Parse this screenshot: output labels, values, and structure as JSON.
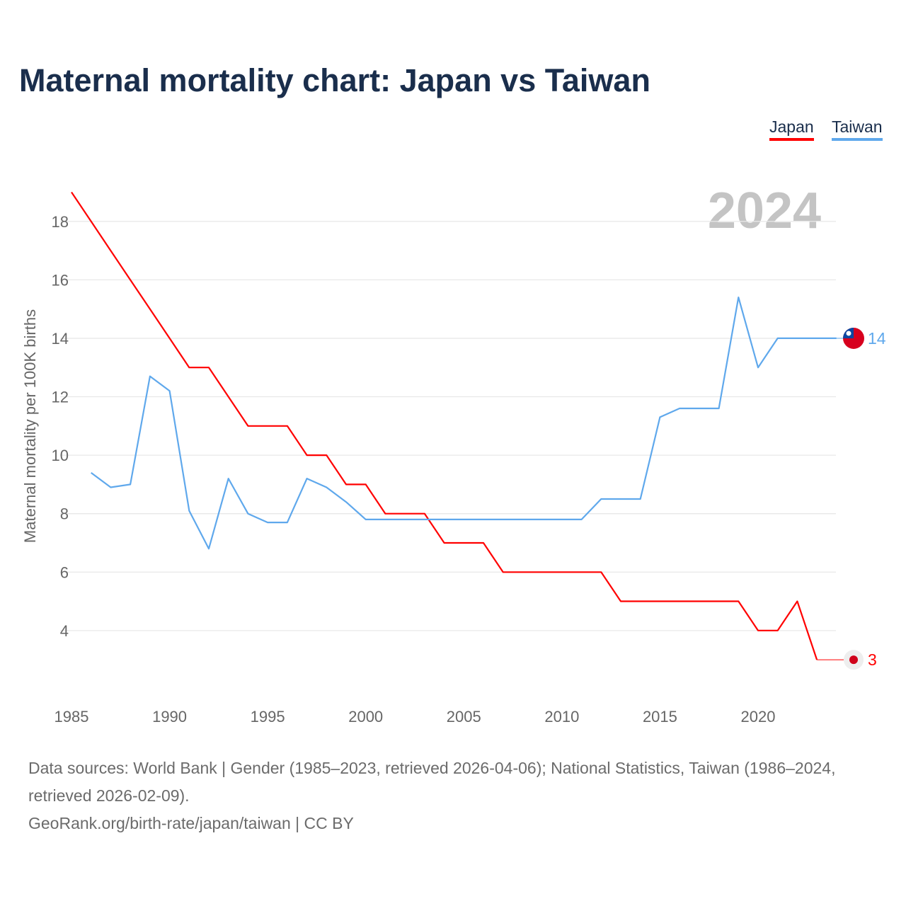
{
  "chart_data": {
    "type": "line",
    "title": "Maternal mortality chart: Japan vs Taiwan",
    "ylabel": "Maternal mortality per 100K births",
    "xlabel": "",
    "year_overlay": "2024",
    "xlim": [
      1985,
      2024
    ],
    "ylim": [
      2,
      19
    ],
    "x_ticks": [
      1985,
      1990,
      1995,
      2000,
      2005,
      2010,
      2015,
      2020
    ],
    "y_ticks": [
      4,
      6,
      8,
      10,
      12,
      14,
      16,
      18
    ],
    "grid": true,
    "legend_position": "top-right",
    "series": [
      {
        "name": "Japan",
        "color": "#ff0000",
        "x": [
          1985,
          1986,
          1987,
          1988,
          1989,
          1990,
          1991,
          1992,
          1993,
          1994,
          1995,
          1996,
          1997,
          1998,
          1999,
          2000,
          2001,
          2002,
          2003,
          2004,
          2005,
          2006,
          2007,
          2008,
          2009,
          2010,
          2011,
          2012,
          2013,
          2014,
          2015,
          2016,
          2017,
          2018,
          2019,
          2020,
          2021,
          2022,
          2023
        ],
        "values": [
          19,
          18,
          17,
          16,
          15,
          14,
          13,
          13,
          12,
          11,
          11,
          11,
          10,
          10,
          9,
          9,
          8,
          8,
          8,
          7,
          7,
          7,
          6,
          6,
          6,
          6,
          6,
          6,
          5,
          5,
          5,
          5,
          5,
          5,
          5,
          4,
          4,
          5,
          3
        ],
        "end_label": "3",
        "marker_icon": "japan-flag-icon"
      },
      {
        "name": "Taiwan",
        "color": "#5fa8ec",
        "x": [
          1986,
          1987,
          1988,
          1989,
          1990,
          1991,
          1992,
          1993,
          1994,
          1995,
          1996,
          1997,
          1998,
          1999,
          2000,
          2001,
          2002,
          2003,
          2004,
          2005,
          2006,
          2007,
          2008,
          2009,
          2010,
          2011,
          2012,
          2013,
          2014,
          2015,
          2016,
          2017,
          2018,
          2019,
          2020,
          2021,
          2022,
          2023,
          2024
        ],
        "values": [
          9.4,
          8.9,
          9.0,
          12.7,
          12.2,
          8.1,
          6.8,
          9.2,
          8.0,
          7.7,
          7.7,
          9.2,
          8.9,
          8.4,
          7.8,
          7.8,
          7.8,
          7.8,
          7.8,
          7.8,
          7.8,
          7.8,
          7.8,
          7.8,
          7.8,
          7.8,
          8.5,
          8.5,
          8.5,
          11.3,
          11.6,
          11.6,
          11.6,
          15.4,
          13.0,
          14.0,
          14.0,
          14.0,
          14.0
        ],
        "end_label": "14",
        "marker_icon": "taiwan-flag-icon"
      }
    ]
  },
  "footer": {
    "line1": "Data sources: World Bank | Gender (1985–2023, retrieved 2026-04-06); National Statistics, Taiwan (1986–2024, retrieved 2026-02-09).",
    "line2": "GeoRank.org/birth-rate/japan/taiwan | CC BY"
  }
}
